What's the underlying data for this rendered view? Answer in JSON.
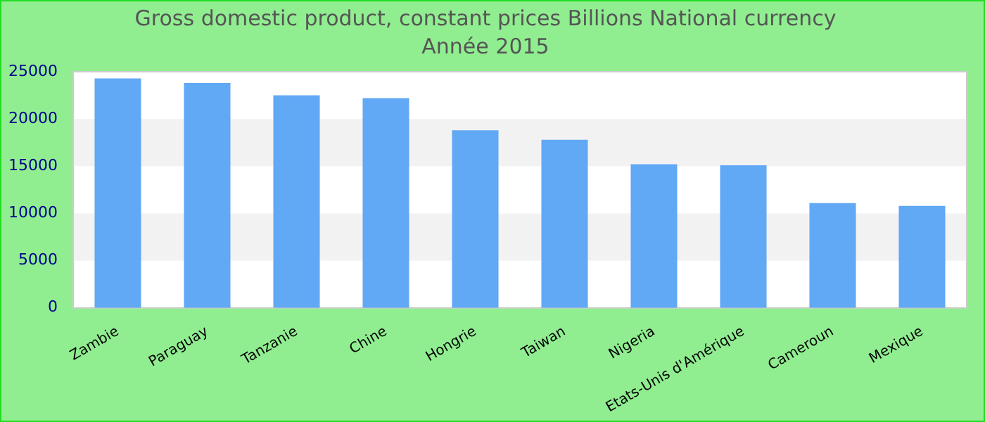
{
  "chart_data": {
    "type": "bar",
    "title": "Gross domestic product, constant prices Billions National currency",
    "subtitle": "Année 2015",
    "categories": [
      "Zambie",
      "Paraguay",
      "Tanzanie",
      "Chine",
      "Hongrie",
      "Taiwan",
      "Nigeria",
      "Etats-Unis d'Amérique",
      "Cameroun",
      "Mexique"
    ],
    "values": [
      24300,
      23800,
      22500,
      22200,
      18800,
      17800,
      15200,
      15100,
      11100,
      10800
    ],
    "color": "#61a8f5",
    "ylim": [
      0,
      25000
    ],
    "yticks": [
      0,
      5000,
      10000,
      15000,
      20000,
      25000
    ]
  }
}
